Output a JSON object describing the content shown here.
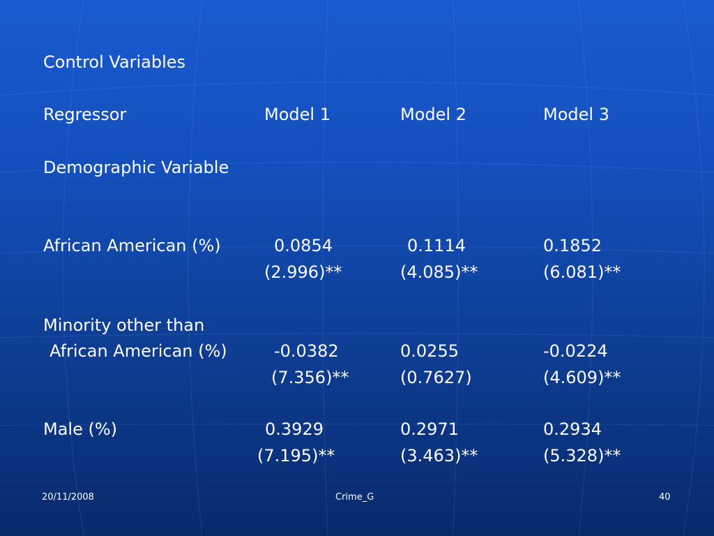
{
  "slide": {
    "heading": "Control Variables",
    "columns": {
      "regressor": "Regressor",
      "model1": "Model 1",
      "model2": "Model 2",
      "model3": "Model 3"
    },
    "section": "Demographic Variable",
    "rows": {
      "african_american": {
        "label": "African American (%)",
        "coefficients": [
          "0.0854",
          "0.1114",
          "0.1852"
        ],
        "stats": [
          "(2.996)**",
          "(4.085)**",
          "(6.081)**"
        ]
      },
      "minority_other": {
        "label_line1": "Minority other than",
        "label_line2": "African American (%)",
        "coefficients": [
          "-0.0382",
          "0.0255",
          "-0.0224"
        ],
        "stats": [
          "(7.356)**",
          "(0.7627)",
          "(4.609)**"
        ]
      },
      "male": {
        "label": "Male (%)",
        "coefficients": [
          "0.3929",
          "0.2971",
          "0.2934"
        ],
        "stats": [
          "(7.195)**",
          "(3.463)**",
          "(5.328)**"
        ]
      }
    }
  },
  "footer": {
    "date": "20/11/2008",
    "title": "Crime_G",
    "page_number": "40"
  },
  "colors": {
    "background_top": "#1a5ad0",
    "background_bottom": "#082a6b",
    "text": "#ffffff"
  }
}
